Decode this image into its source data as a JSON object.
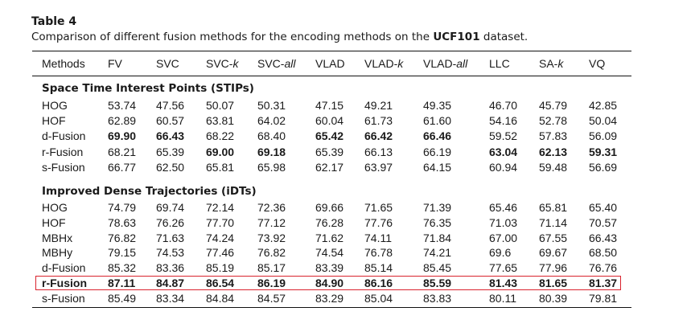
{
  "table": {
    "label": "Table 4",
    "caption_prefix": "Comparison of different fusion methods for the encoding methods on the ",
    "caption_dataset": "UCF101",
    "caption_suffix": " dataset.",
    "columns": [
      {
        "base": "Methods",
        "ital": ""
      },
      {
        "base": "FV",
        "ital": ""
      },
      {
        "base": "SVC",
        "ital": ""
      },
      {
        "base": "SVC-",
        "ital": "k"
      },
      {
        "base": "SVC-",
        "ital": "all"
      },
      {
        "base": "VLAD",
        "ital": ""
      },
      {
        "base": "VLAD-",
        "ital": "k"
      },
      {
        "base": "VLAD-",
        "ital": "all"
      },
      {
        "base": "LLC",
        "ital": ""
      },
      {
        "base": "SA-",
        "ital": "k"
      },
      {
        "base": "VQ",
        "ital": ""
      }
    ],
    "sections": [
      {
        "title": "Space Time Interest Points (STIPs)",
        "rows": [
          {
            "method": "HOG",
            "values": [
              "53.74",
              "47.56",
              "50.07",
              "50.31",
              "47.15",
              "49.21",
              "49.35",
              "46.70",
              "45.79",
              "42.85"
            ],
            "bold": []
          },
          {
            "method": "HOF",
            "values": [
              "62.89",
              "60.57",
              "63.81",
              "64.02",
              "60.04",
              "61.73",
              "61.60",
              "54.16",
              "52.78",
              "50.04"
            ],
            "bold": []
          },
          {
            "method": "d-Fusion",
            "values": [
              "69.90",
              "66.43",
              "68.22",
              "68.40",
              "65.42",
              "66.42",
              "66.46",
              "59.52",
              "57.83",
              "56.09"
            ],
            "bold": [
              0,
              1,
              4,
              5,
              6
            ]
          },
          {
            "method": "r-Fusion",
            "values": [
              "68.21",
              "65.39",
              "69.00",
              "69.18",
              "65.39",
              "66.13",
              "66.19",
              "63.04",
              "62.13",
              "59.31"
            ],
            "bold": [
              2,
              3,
              7,
              8,
              9
            ]
          },
          {
            "method": "s-Fusion",
            "values": [
              "66.77",
              "62.50",
              "65.81",
              "65.98",
              "62.17",
              "63.97",
              "64.15",
              "60.94",
              "59.48",
              "56.69"
            ],
            "bold": []
          }
        ]
      },
      {
        "title": "Improved Dense Trajectories (iDTs)",
        "rows": [
          {
            "method": "HOG",
            "values": [
              "74.79",
              "69.74",
              "72.14",
              "72.36",
              "69.66",
              "71.65",
              "71.39",
              "65.46",
              "65.81",
              "65.40"
            ],
            "bold": []
          },
          {
            "method": "HOF",
            "values": [
              "78.63",
              "76.26",
              "77.70",
              "77.12",
              "76.28",
              "77.76",
              "76.35",
              "71.03",
              "71.14",
              "70.57"
            ],
            "bold": []
          },
          {
            "method": "MBHx",
            "values": [
              "76.82",
              "71.63",
              "74.24",
              "73.92",
              "71.62",
              "74.11",
              "71.84",
              "67.00",
              "67.55",
              "66.43"
            ],
            "bold": []
          },
          {
            "method": "MBHy",
            "values": [
              "79.15",
              "74.53",
              "77.46",
              "76.82",
              "74.54",
              "76.78",
              "74.21",
              "69.6",
              "69.67",
              "68.50"
            ],
            "bold": []
          },
          {
            "method": "d-Fusion",
            "values": [
              "85.32",
              "83.36",
              "85.19",
              "85.17",
              "83.39",
              "85.14",
              "85.45",
              "77.65",
              "77.96",
              "76.76"
            ],
            "bold": []
          },
          {
            "method": "r-Fusion",
            "values": [
              "87.11",
              "84.87",
              "86.54",
              "86.19",
              "84.90",
              "86.16",
              "85.59",
              "81.43",
              "81.65",
              "81.37"
            ],
            "bold": [
              0,
              1,
              2,
              3,
              4,
              5,
              6,
              7,
              8,
              9
            ],
            "bold_method": true,
            "highlight": true
          },
          {
            "method": "s-Fusion",
            "values": [
              "85.49",
              "83.34",
              "84.84",
              "84.57",
              "83.29",
              "85.04",
              "83.83",
              "80.11",
              "80.39",
              "79.81"
            ],
            "bold": []
          }
        ]
      }
    ]
  }
}
